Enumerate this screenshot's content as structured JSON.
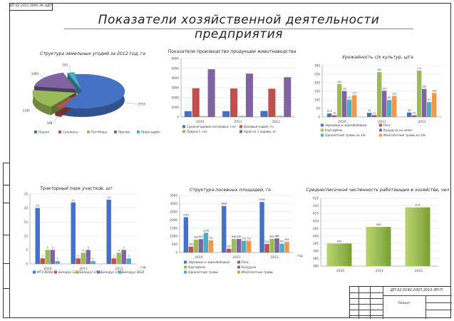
{
  "page": {
    "doc_code": "ДП 02-2013 0090 ЭК-ХДП",
    "title": "Показатели хозяйственной деятельности предприятия",
    "stamp_code": "ДП.02.0190.2007.2013-ЭП-П",
    "stamp_name": "Плакат"
  },
  "colors": {
    "blue": "#4472c4",
    "red": "#c0504d",
    "green": "#9bbb59",
    "purple": "#8064a2",
    "aqua": "#4bacc6",
    "orange": "#f79646"
  },
  "chart_data": [
    {
      "id": "land",
      "type": "pie",
      "title": "Структура земельных угодий за 2012 год, га",
      "categories": [
        "Пашня",
        "Сенокосы",
        "Пастбища",
        "Прочие",
        "Приусадебные участки"
      ],
      "values": [
        3753,
        148,
        1105,
        1095,
        163
      ],
      "value_labels": [
        "3753",
        "148",
        "1105",
        "1095",
        "163"
      ],
      "legend": "bottom",
      "style": "3d-exploded"
    },
    {
      "id": "livestock",
      "type": "bar",
      "title": "Показатели производства продукции животноводства",
      "categories": [
        "2010",
        "2011",
        "2012"
      ],
      "series": [
        {
          "name": "Среднегодовое поголовье, гол",
          "values": [
            600,
            600,
            620
          ]
        },
        {
          "name": "Валовый надой, тн",
          "values": [
            2950,
            2920,
            2900
          ]
        },
        {
          "name": "Прирост, гол",
          "values": [
            100,
            110,
            120
          ]
        },
        {
          "name": "Удой на 1 корову, кг",
          "values": [
            4900,
            4450,
            4080
          ]
        }
      ],
      "ylim": [
        0,
        6000
      ],
      "yticks": [
        "0",
        "1000",
        "2000",
        "3000",
        "4000",
        "5000",
        "6000"
      ],
      "legend": "bottom"
    },
    {
      "id": "yield",
      "type": "bar",
      "title": "Урожайность с/х культур, ц/га",
      "categories": [
        "2010",
        "2011",
        "2012"
      ],
      "series": [
        {
          "name": "Зерновые и зернобобовые",
          "values": [
            20.5,
            24,
            26
          ]
        },
        {
          "name": "Рапс",
          "values": [
            10,
            11,
            10
          ]
        },
        {
          "name": "Картофель",
          "values": [
            192,
            262,
            271
          ]
        },
        {
          "name": "Кукуруза на силос",
          "values": [
            152,
            153,
            164
          ]
        },
        {
          "name": "Однолетние травы на з/м",
          "values": [
            101,
            99,
            87
          ]
        },
        {
          "name": "Многолетние травы на з/м",
          "values": [
            127,
            123,
            140
          ]
        }
      ],
      "value_labels": [
        [
          "20,5",
          "24",
          "26"
        ],
        [
          "10",
          "11",
          "10"
        ],
        [
          "192",
          "262",
          "271"
        ],
        [
          "152",
          "153",
          "164"
        ],
        [
          "101",
          "99",
          "87"
        ],
        [
          "127",
          "123",
          "140"
        ]
      ],
      "ylim": [
        0,
        300
      ],
      "yticks": [
        "0",
        "50",
        "100",
        "150",
        "200",
        "250",
        "300"
      ],
      "legend": "bottom"
    },
    {
      "id": "tractors",
      "type": "bar",
      "title": "Тракторный парк участков, шт",
      "categories": [
        "2010",
        "2011",
        "2012"
      ],
      "series": [
        {
          "name": "МТЗ-80/82",
          "values": [
            20,
            22,
            23
          ]
        },
        {
          "name": "Беларус-1221",
          "values": [
            2,
            2,
            2
          ]
        },
        {
          "name": "Беларус-1523",
          "values": [
            5,
            4,
            4
          ]
        },
        {
          "name": "Беларус-1502",
          "values": [
            5,
            5,
            5
          ]
        },
        {
          "name": "Беларус-3022",
          "values": [
            1,
            1,
            2
          ]
        }
      ],
      "value_labels": [
        [
          "20",
          "22",
          "23"
        ],
        [
          "2",
          "2",
          "2"
        ],
        [
          "5",
          "4",
          "4"
        ],
        [
          "5",
          "5",
          "5"
        ],
        [
          "1",
          "1",
          "2"
        ]
      ],
      "ylim": [
        0,
        25
      ],
      "yticks": [
        "0",
        "5",
        "10",
        "15",
        "20",
        "25"
      ],
      "xunit": "год",
      "legend": "bottom"
    },
    {
      "id": "sown",
      "type": "bar",
      "title": "Структура посевных площадей, га",
      "categories": [
        "2010",
        "2011",
        "2012"
      ],
      "series": [
        {
          "name": "Зерновые и зернобобовые",
          "values": [
            2165,
            2858,
            3098
          ]
        },
        {
          "name": "Рапс",
          "values": [
            364,
            232,
            524
          ]
        },
        {
          "name": "Картофель",
          "values": [
            790,
            840,
            832
          ]
        },
        {
          "name": "Кукуруза",
          "values": [
            822,
            830,
            868
          ]
        },
        {
          "name": "Однолетние травы",
          "values": [
            1206,
            720,
            540
          ]
        },
        {
          "name": "Многолетние травы",
          "values": [
            752,
            720,
            656
          ]
        }
      ],
      "value_labels": [
        [
          "2165",
          "2858",
          "3098"
        ],
        [
          "364",
          "232",
          "524"
        ],
        [
          "790",
          "840",
          "832"
        ],
        [
          "822",
          "830",
          "868"
        ],
        [
          "1206",
          "720",
          "540"
        ],
        [
          "752",
          "720",
          "656"
        ]
      ],
      "ylim": [
        0,
        3500
      ],
      "yticks": [
        "0",
        "500",
        "1000",
        "1500",
        "2000",
        "2500",
        "3000",
        "3500"
      ],
      "xunit": "год",
      "legend": "bottom"
    },
    {
      "id": "workers",
      "type": "bar",
      "title": "Среднесписочная численность работающих в хозяйстве, чел",
      "categories": [
        "2010",
        "2011",
        "2012"
      ],
      "values": [
        395,
        406,
        419
      ],
      "value_labels": [
        "395",
        "406",
        "419"
      ],
      "ylim": [
        380,
        425
      ],
      "yticks": [
        "380",
        "385",
        "390",
        "395",
        "400",
        "405",
        "410",
        "415",
        "420",
        "425"
      ]
    }
  ]
}
